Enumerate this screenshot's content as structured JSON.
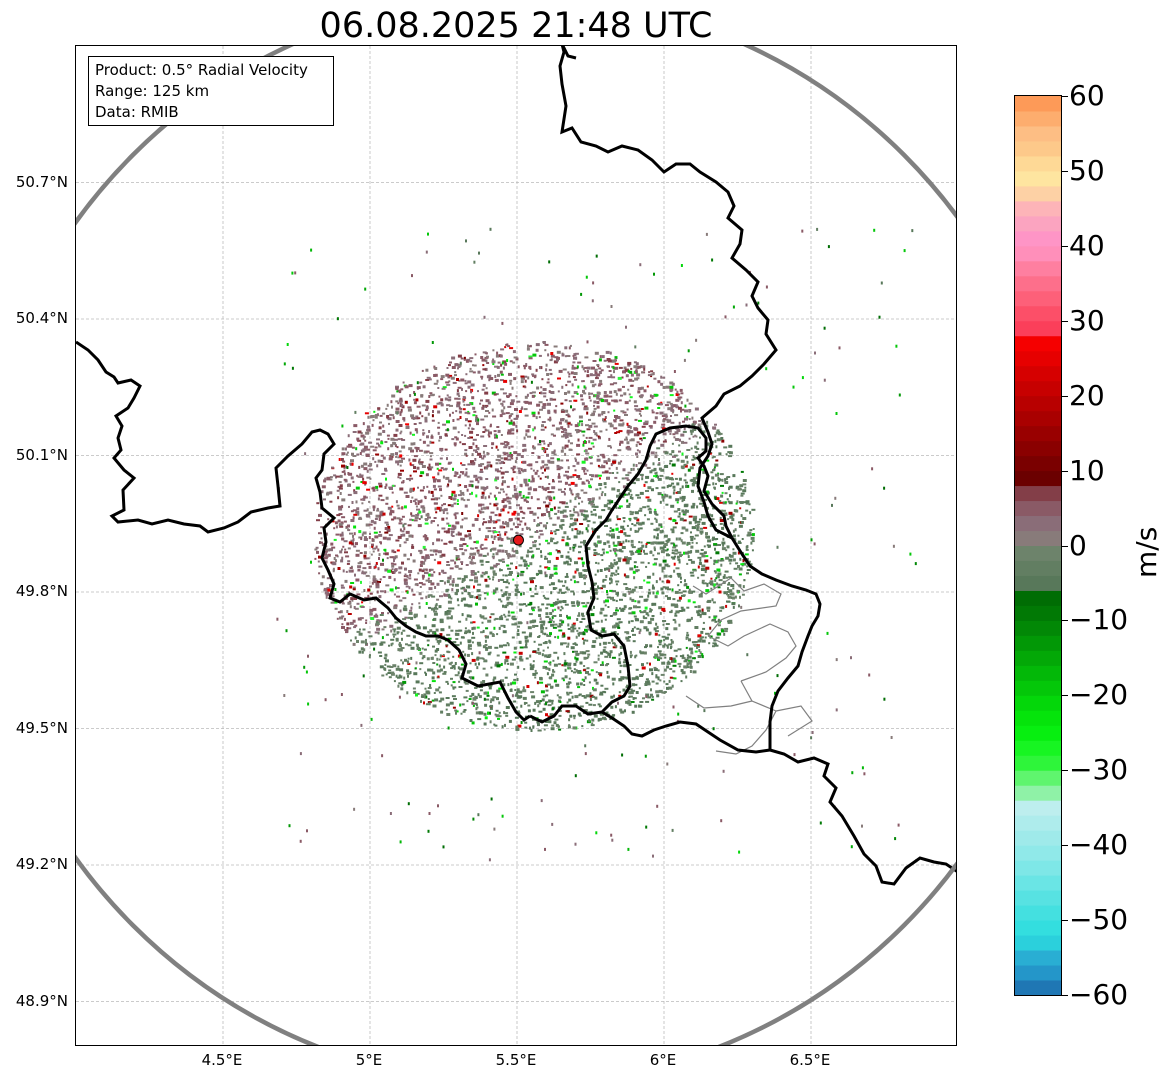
{
  "title": "06.08.2025 21:48 UTC",
  "info_box": {
    "product": "Product: 0.5° Radial Velocity",
    "range": "Range: 125 km",
    "data": "Data: RMIB"
  },
  "map": {
    "lon_range": [
      4.0,
      7.0
    ],
    "lat_range": [
      48.8,
      51.0
    ],
    "lat_ticks": [
      {
        "value": 50.7,
        "label": "50.7°N"
      },
      {
        "value": 50.4,
        "label": "50.4°N"
      },
      {
        "value": 50.1,
        "label": "50.1°N"
      },
      {
        "value": 49.8,
        "label": "49.8°N"
      },
      {
        "value": 49.5,
        "label": "49.5°N"
      },
      {
        "value": 49.2,
        "label": "49.2°N"
      },
      {
        "value": 48.9,
        "label": "48.9°N"
      }
    ],
    "lon_ticks": [
      {
        "value": 4.5,
        "label": "4.5°E"
      },
      {
        "value": 5.0,
        "label": "5°E"
      },
      {
        "value": 5.5,
        "label": "5.5°E"
      },
      {
        "value": 6.0,
        "label": "6°E"
      },
      {
        "value": 6.5,
        "label": "6.5°E"
      }
    ],
    "radar_site": {
      "lon": 5.505,
      "lat": 49.914
    },
    "range_ring_color": "#808080",
    "site_color": "#e41a1c",
    "border_color": "#000000",
    "echo_outbound_color": "#8a5f6c",
    "echo_inbound_color": "#5e7e58"
  },
  "colorbar": {
    "unit": "m/s",
    "min": -60,
    "max": 60,
    "ticks": [
      {
        "value": 60,
        "label": "60"
      },
      {
        "value": 50,
        "label": "50"
      },
      {
        "value": 40,
        "label": "40"
      },
      {
        "value": 30,
        "label": "30"
      },
      {
        "value": 20,
        "label": "20"
      },
      {
        "value": 10,
        "label": "10"
      },
      {
        "value": 0,
        "label": "0"
      },
      {
        "value": -10,
        "label": "−10"
      },
      {
        "value": -20,
        "label": "−20"
      },
      {
        "value": -30,
        "label": "−30"
      },
      {
        "value": -40,
        "label": "−40"
      },
      {
        "value": -50,
        "label": "−50"
      },
      {
        "value": -60,
        "label": "−60"
      }
    ],
    "stops": [
      {
        "from": -60,
        "to": -58,
        "color": "#1f77b4"
      },
      {
        "from": -58,
        "to": -56,
        "color": "#2496c9"
      },
      {
        "from": -56,
        "to": -54,
        "color": "#29aed3"
      },
      {
        "from": -54,
        "to": -52,
        "color": "#2bd0dc"
      },
      {
        "from": -52,
        "to": -50,
        "color": "#33dedf"
      },
      {
        "from": -50,
        "to": -48,
        "color": "#44e0e0"
      },
      {
        "from": -48,
        "to": -46,
        "color": "#57e2e2"
      },
      {
        "from": -46,
        "to": -44,
        "color": "#6ae5e5"
      },
      {
        "from": -44,
        "to": -42,
        "color": "#7ee7e7"
      },
      {
        "from": -42,
        "to": -40,
        "color": "#90e9e9"
      },
      {
        "from": -40,
        "to": -38,
        "color": "#9feaea"
      },
      {
        "from": -38,
        "to": -36,
        "color": "#aeecec"
      },
      {
        "from": -36,
        "to": -34,
        "color": "#bdeeee"
      },
      {
        "from": -34,
        "to": -32,
        "color": "#8ff2a7"
      },
      {
        "from": -32,
        "to": -30,
        "color": "#5ff56e"
      },
      {
        "from": -30,
        "to": -28,
        "color": "#2ef53a"
      },
      {
        "from": -28,
        "to": -26,
        "color": "#17f522"
      },
      {
        "from": -26,
        "to": -24,
        "color": "#07ef10"
      },
      {
        "from": -24,
        "to": -22,
        "color": "#05e40b"
      },
      {
        "from": -22,
        "to": -20,
        "color": "#04d70a"
      },
      {
        "from": -20,
        "to": -18,
        "color": "#04c709"
      },
      {
        "from": -18,
        "to": -16,
        "color": "#03b808"
      },
      {
        "from": -16,
        "to": -14,
        "color": "#03a807"
      },
      {
        "from": -14,
        "to": -12,
        "color": "#029806"
      },
      {
        "from": -12,
        "to": -10,
        "color": "#028806"
      },
      {
        "from": -10,
        "to": -8,
        "color": "#017905"
      },
      {
        "from": -8,
        "to": -6,
        "color": "#006d04"
      },
      {
        "from": -6,
        "to": -4,
        "color": "#58785a"
      },
      {
        "from": -4,
        "to": -2,
        "color": "#627e62"
      },
      {
        "from": -2,
        "to": 0,
        "color": "#6d836b"
      },
      {
        "from": 0,
        "to": 2,
        "color": "#887b7a"
      },
      {
        "from": 2,
        "to": 4,
        "color": "#8a6d78"
      },
      {
        "from": 4,
        "to": 6,
        "color": "#8a5a66"
      },
      {
        "from": 6,
        "to": 8,
        "color": "#833e48"
      },
      {
        "from": 8,
        "to": 10,
        "color": "#6b0000"
      },
      {
        "from": 10,
        "to": 12,
        "color": "#7a0000"
      },
      {
        "from": 12,
        "to": 14,
        "color": "#8a0000"
      },
      {
        "from": 14,
        "to": 16,
        "color": "#990000"
      },
      {
        "from": 16,
        "to": 18,
        "color": "#a90000"
      },
      {
        "from": 18,
        "to": 20,
        "color": "#b80000"
      },
      {
        "from": 20,
        "to": 22,
        "color": "#c70000"
      },
      {
        "from": 22,
        "to": 24,
        "color": "#d60000"
      },
      {
        "from": 24,
        "to": 26,
        "color": "#e60000"
      },
      {
        "from": 26,
        "to": 28,
        "color": "#f50000"
      },
      {
        "from": 28,
        "to": 30,
        "color": "#fb3f5a"
      },
      {
        "from": 30,
        "to": 32,
        "color": "#fc4f68"
      },
      {
        "from": 32,
        "to": 34,
        "color": "#fd6079"
      },
      {
        "from": 34,
        "to": 36,
        "color": "#fd6f8b"
      },
      {
        "from": 36,
        "to": 38,
        "color": "#fe7fa0"
      },
      {
        "from": 38,
        "to": 40,
        "color": "#ff8fba"
      },
      {
        "from": 40,
        "to": 42,
        "color": "#fe95c6"
      },
      {
        "from": 42,
        "to": 44,
        "color": "#fba4c0"
      },
      {
        "from": 44,
        "to": 46,
        "color": "#fdb4b8"
      },
      {
        "from": 46,
        "to": 48,
        "color": "#fdd1a5"
      },
      {
        "from": 48,
        "to": 50,
        "color": "#fee5a0"
      },
      {
        "from": 50,
        "to": 52,
        "color": "#fed996"
      },
      {
        "from": 52,
        "to": 54,
        "color": "#fdc98a"
      },
      {
        "from": 54,
        "to": 56,
        "color": "#fdbe84"
      },
      {
        "from": 56,
        "to": 58,
        "color": "#fdad6e"
      },
      {
        "from": 58,
        "to": 60,
        "color": "#fd9a58"
      }
    ]
  }
}
